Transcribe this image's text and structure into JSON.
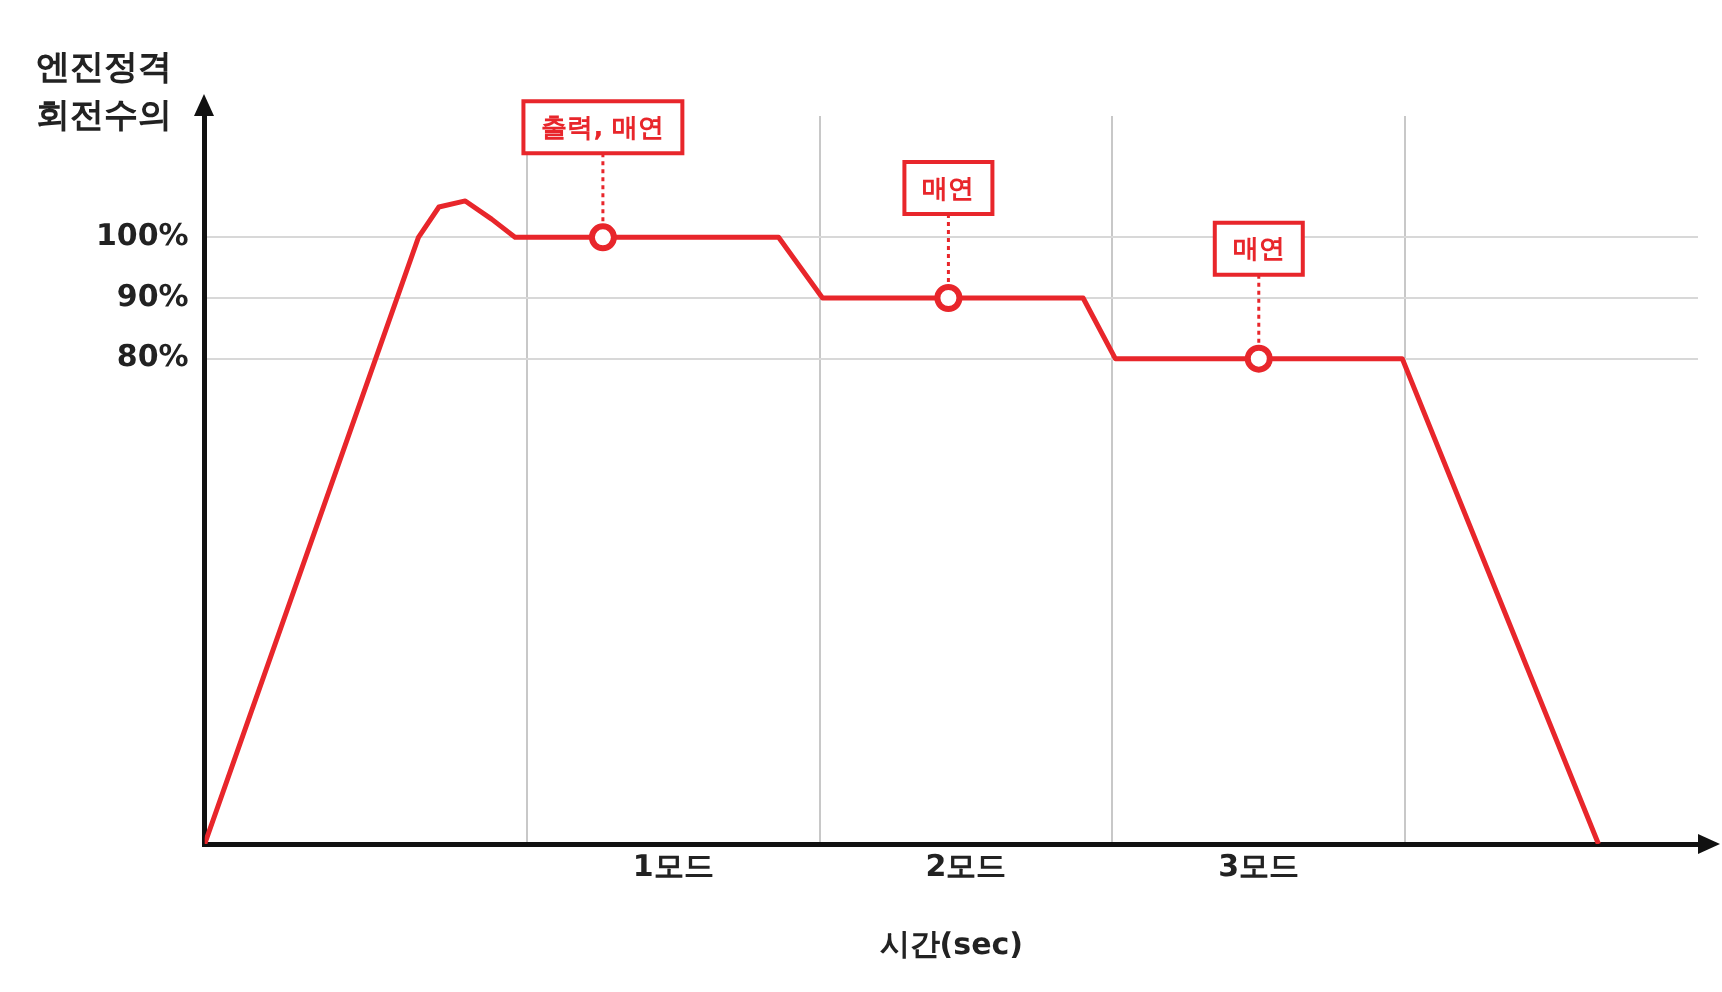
{
  "chart_data": {
    "type": "line",
    "xlabel": "시간(sec)",
    "ylabel": "엔진정격 회전수의",
    "xlim": [
      -0.1,
      5.0
    ],
    "ylim": [
      0,
      120
    ],
    "xticks": [
      {
        "value": 1,
        "label": null
      },
      {
        "value": 1.5,
        "label": "1모드"
      },
      {
        "value": 2,
        "label": null
      },
      {
        "value": 2.5,
        "label": "2모드"
      },
      {
        "value": 3,
        "label": null
      },
      {
        "value": 3.5,
        "label": "3모드"
      },
      {
        "value": 4,
        "label": null
      }
    ],
    "yticks": [
      {
        "value": 80,
        "label": "80%"
      },
      {
        "value": 90,
        "label": "90%"
      },
      {
        "value": 100,
        "label": "100%"
      }
    ],
    "grid": true,
    "legend": false,
    "series": [
      {
        "color": "#e8262b",
        "marker": "none",
        "x": [
          -0.1,
          0.63,
          0.7,
          0.79,
          0.88,
          0.96,
          1.86,
          2.01,
          2.9,
          3.01,
          3.99,
          4.66
        ],
        "values": [
          0,
          100,
          105,
          106,
          103,
          100,
          100,
          90,
          90,
          80,
          80,
          0
        ]
      },
      {
        "type": "scatter",
        "color": "#e8262b",
        "marker": "circle",
        "x": [
          1.26,
          2.44,
          3.5
        ],
        "values": [
          100,
          90,
          80
        ]
      }
    ],
    "annotations": [
      {
        "text": "출력, 매연",
        "x": 1.26,
        "y": 100
      },
      {
        "text": "매연",
        "x": 2.44,
        "y": 90
      },
      {
        "text": "매연",
        "x": 3.5,
        "y": 80
      }
    ]
  }
}
